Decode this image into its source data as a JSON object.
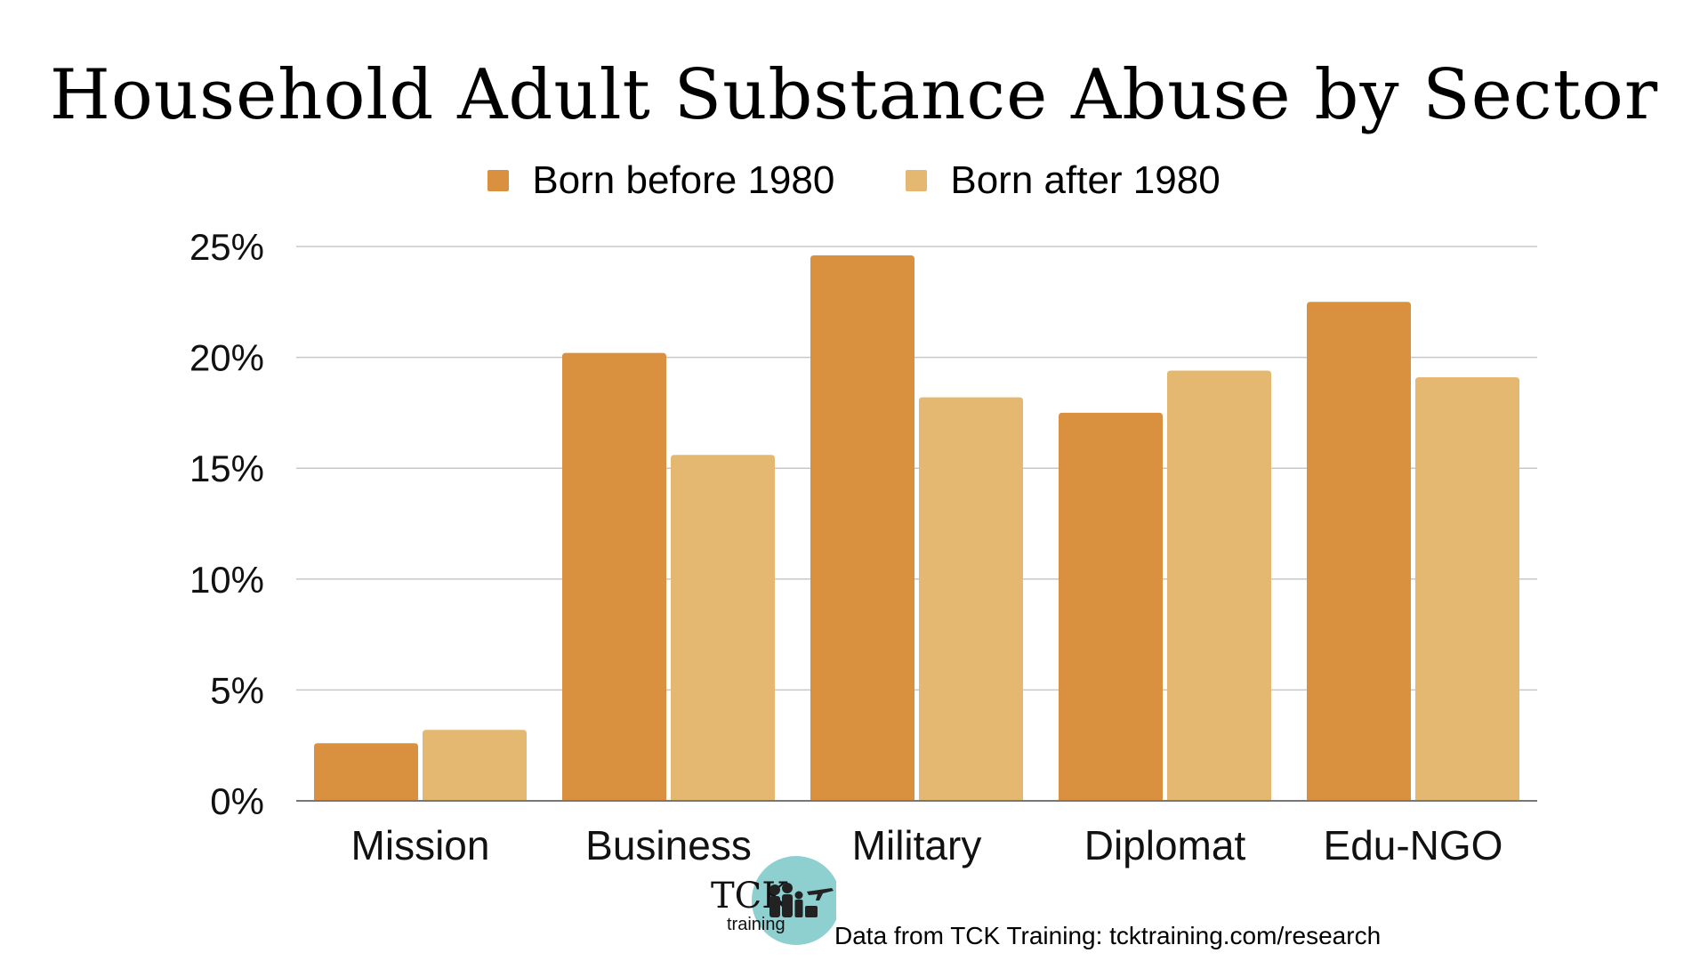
{
  "chart_data": {
    "type": "bar",
    "title": "Household Adult Substance Abuse by Sector",
    "categories": [
      "Mission",
      "Business",
      "Military",
      "Diplomat",
      "Edu-NGO"
    ],
    "series": [
      {
        "name": "Born before 1980",
        "values": [
          2.6,
          20.2,
          24.6,
          17.5,
          22.5
        ],
        "color": "#d99140"
      },
      {
        "name": "Born after 1980",
        "values": [
          3.2,
          15.6,
          18.2,
          19.4,
          19.1
        ],
        "color": "#e5b871"
      }
    ],
    "ylim": [
      0,
      25
    ],
    "yticks": [
      "0%",
      "5%",
      "10%",
      "15%",
      "20%",
      "25%"
    ],
    "ytick_values": [
      0,
      5,
      10,
      15,
      20,
      25
    ],
    "grid": true,
    "legend_position": "top-center",
    "xlabel": "",
    "ylabel": ""
  },
  "source": "Data from TCK Training: tcktraining.com/research",
  "logo": {
    "text_tck": "TCK",
    "text_training": "training",
    "accent_color": "#8ecfd0"
  }
}
